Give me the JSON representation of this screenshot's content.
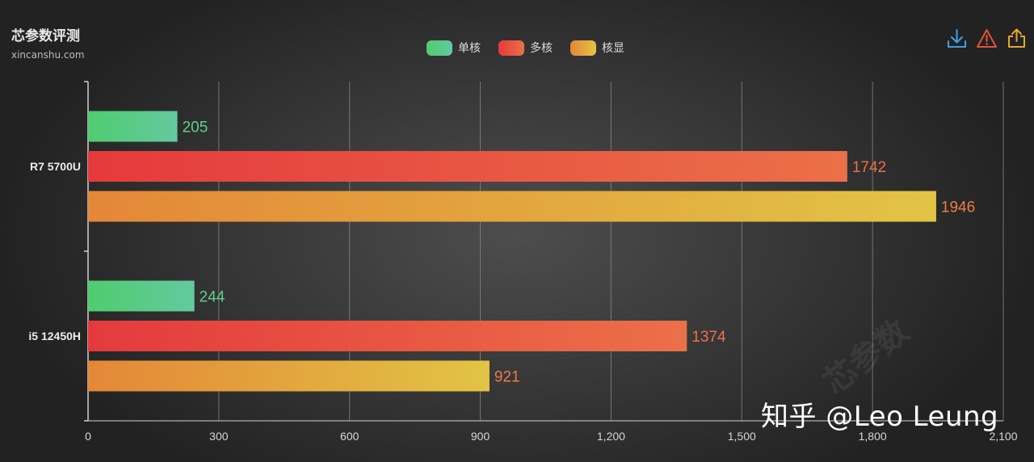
{
  "header": {
    "title": "芯参数评测",
    "subtitle": "xincanshu.com"
  },
  "legend": [
    {
      "label": "单核",
      "gradient": [
        "#4fcc6e",
        "#64c9a0"
      ]
    },
    {
      "label": "多核",
      "gradient": [
        "#e53a3d",
        "#eb7048"
      ]
    },
    {
      "label": "核显",
      "gradient": [
        "#e48737",
        "#e2c445"
      ]
    }
  ],
  "toolbar": {
    "download_icon": "download-icon",
    "report_icon": "warning-icon",
    "share_icon": "share-icon"
  },
  "watermark": "知乎 @Leo Leung",
  "watermark_stamp": "芯参数",
  "colors": {
    "single_label": "#5fd18b",
    "multi_label": "#ec7046",
    "gpu_label": "#ec7c46",
    "grid": "#8a8a8a"
  },
  "chart_data": {
    "type": "bar",
    "orientation": "horizontal",
    "categories": [
      "R7 5700U",
      "i5 12450H"
    ],
    "series": [
      {
        "name": "单核",
        "values": [
          205,
          244
        ]
      },
      {
        "name": "多核",
        "values": [
          1742,
          1374
        ]
      },
      {
        "name": "核显",
        "values": [
          1946,
          921
        ]
      }
    ],
    "xlim": [
      0,
      2100
    ],
    "xticks": [
      0,
      300,
      600,
      900,
      1200,
      1500,
      1800,
      2100
    ],
    "xtick_labels": [
      "0",
      "300",
      "600",
      "900",
      "1,200",
      "1,500",
      "1,800",
      "2,100"
    ],
    "grid": true,
    "legend_position": "top-center"
  }
}
